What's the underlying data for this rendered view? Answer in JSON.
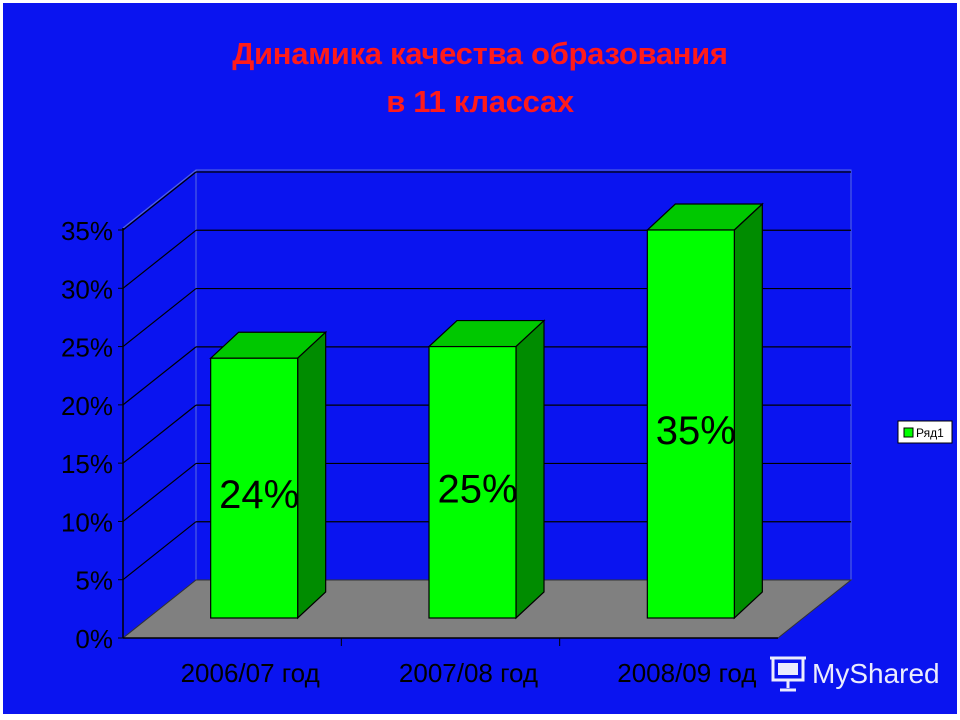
{
  "slide": {
    "title_line1": "Динамика качества образования",
    "title_line2": "в 11 классах",
    "background_color": "#0a14f0",
    "title_color": "#ff1a1a"
  },
  "chart_data": {
    "type": "bar",
    "title": "Динамика качества образования в 11 классах",
    "categories": [
      "2006/07 год",
      "2007/08 год",
      "2008/09 год"
    ],
    "series": [
      {
        "name": "Ряд1",
        "values": [
          24,
          25,
          35
        ],
        "labels": [
          "24%",
          "25%",
          "35%"
        ]
      }
    ],
    "yticks": [
      "0%",
      "5%",
      "10%",
      "15%",
      "20%",
      "25%",
      "30%",
      "35%"
    ],
    "ylim": [
      0,
      35
    ],
    "ystep": 5,
    "grid": true,
    "three_d": true,
    "legend_position": "right",
    "colors": {
      "bar_front": "#00ff00",
      "bar_top": "#00c800",
      "bar_side": "#008c00",
      "floor": "#808080",
      "grid": "#000000",
      "axis_text": "#000000"
    }
  },
  "watermark": {
    "text": "MyShared",
    "icon": "presentation-board-icon"
  }
}
